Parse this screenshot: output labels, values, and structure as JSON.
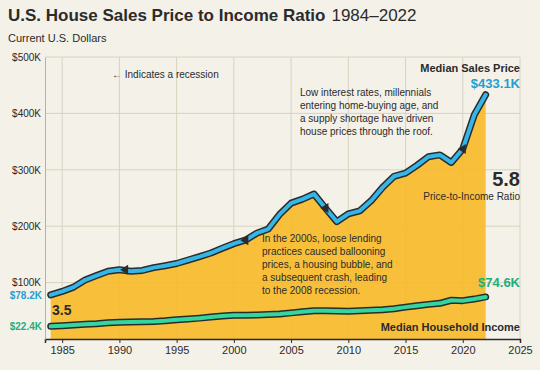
{
  "chart_data": {
    "type": "area",
    "title": "U.S. House Sales Price to Income Ratio",
    "title_years": "1984–2022",
    "ylabel": "Current U.S. Dollars",
    "color": "#f7bb2a",
    "grid": true,
    "x": [
      1984,
      1985,
      1986,
      1987,
      1988,
      1989,
      1990,
      1991,
      1992,
      1993,
      1994,
      1995,
      1996,
      1997,
      1998,
      1999,
      2000,
      2001,
      2002,
      2003,
      2004,
      2005,
      2006,
      2007,
      2008,
      2009,
      2010,
      2011,
      2012,
      2013,
      2014,
      2015,
      2016,
      2017,
      2018,
      2019,
      2020,
      2021,
      2022
    ],
    "xlim": [
      1983.5,
      2025
    ],
    "xticks": [
      1985,
      1990,
      1995,
      2000,
      2005,
      2010,
      2015,
      2020,
      2025
    ],
    "ylim": [
      0,
      500000
    ],
    "yticks": [
      {
        "value": 100000,
        "label": "$100K"
      },
      {
        "value": 200000,
        "label": "$200K"
      },
      {
        "value": 300000,
        "label": "$300K"
      },
      {
        "value": 400000,
        "label": "$400K"
      },
      {
        "value": 500000,
        "label": "$500K"
      }
    ],
    "series": [
      {
        "name": "Median Sales Price",
        "color": "#35b6e9",
        "start_label": "$78.2K",
        "end_label": "$433.1K",
        "values": [
          78200,
          84300,
          92000,
          104500,
          112500,
          120000,
          122900,
          120000,
          121500,
          126500,
          130000,
          133900,
          140000,
          146000,
          152500,
          161000,
          169000,
          175200,
          187600,
          195000,
          221000,
          240900,
          248000,
          257000,
          232100,
          208000,
          221800,
          227200,
          245200,
          268900,
          288500,
          294200,
          307800,
          323100,
          326400,
          313000,
          336900,
          397100,
          433100
        ]
      },
      {
        "name": "Median Household Income",
        "color": "#33d69f",
        "start_label": "$22.4K",
        "end_label": "$74.6K",
        "values": [
          22400,
          23600,
          24900,
          26100,
          27200,
          28900,
          29900,
          30100,
          30600,
          31200,
          32300,
          34100,
          35500,
          37000,
          38900,
          40700,
          41990,
          42200,
          42400,
          43300,
          44300,
          46300,
          48200,
          50200,
          50300,
          49800,
          49300,
          50100,
          51000,
          52000,
          53700,
          56500,
          59000,
          61400,
          63200,
          68700,
          68000,
          70800,
          74600
        ]
      }
    ],
    "ratio_label": "Price-to-Income Ratio",
    "ratio_start": 3.5,
    "ratio_end": 5.8,
    "recession_note": "← Indicates a recession",
    "recessions": [
      1990.5,
      2001,
      2008,
      2020
    ],
    "notes": [
      [
        "Low interest rates, millennials",
        "entering home-buying age, and",
        "a supply shortage have driven",
        "house prices through the roof."
      ],
      [
        "In the 2000s, loose lending",
        "practices caused ballooning",
        "prices, a housing bubble, and",
        "a subsequent crash, leading",
        "to the 2008 recession."
      ]
    ]
  }
}
